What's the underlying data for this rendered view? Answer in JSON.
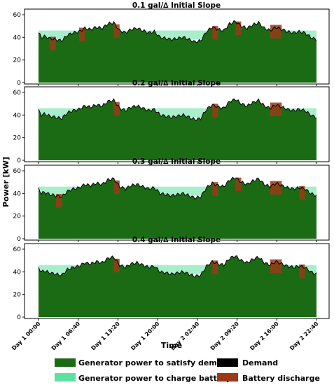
{
  "chart_data": {
    "type": "area",
    "ylabel": "Power [kW]",
    "xlabel": "Time",
    "ylim": [
      0,
      60
    ],
    "yticks": [
      0,
      20,
      40,
      60
    ],
    "xticks": [
      "Day 1 00:00",
      "Day 1 06:40",
      "Day 1 13:20",
      "Day 1 20:00",
      "Day 2 02:40",
      "Day 2 09:20",
      "Day 2 16:00",
      "Day 2 22:40"
    ],
    "xrange_hours": [
      0,
      48
    ],
    "legend": [
      {
        "label": "Generator power to satisfy demand",
        "color": "#1b6b14"
      },
      {
        "label": "Demand",
        "color": "#000000"
      },
      {
        "label": "Generator power to charge battery",
        "color": "#5ee0a0"
      },
      {
        "label": "Battery discharge",
        "color": "#9a3a16"
      }
    ],
    "demand_hours": [
      0,
      0.5,
      1,
      2,
      3,
      4,
      5,
      6,
      7,
      8,
      9,
      10,
      11,
      12,
      13,
      14,
      15,
      16,
      17,
      18,
      19,
      20,
      21,
      22,
      23,
      24,
      25,
      26,
      27,
      28,
      29,
      30,
      31,
      32,
      33,
      34,
      35,
      36,
      37,
      38,
      39,
      40,
      41,
      42,
      43,
      44,
      45,
      46,
      47,
      48
    ],
    "demand_values": [
      44,
      40,
      41,
      39,
      38,
      37,
      42,
      44,
      45,
      48,
      47,
      49,
      48,
      52,
      53,
      46,
      44,
      47,
      48,
      46,
      44,
      45,
      40,
      39,
      38,
      39,
      40,
      38,
      36,
      37,
      45,
      49,
      47,
      46,
      52,
      54,
      50,
      48,
      51,
      53,
      48,
      46,
      49,
      47,
      45,
      44,
      45,
      44,
      40,
      38
    ],
    "panels": [
      {
        "title": "0.1 gal/∆ Initial Slope",
        "charge_band": [
          38,
          46
        ],
        "discharge_hours": [
          [
            2,
            3
          ],
          [
            7,
            8
          ],
          [
            13,
            14
          ],
          [
            30,
            31
          ],
          [
            34,
            35
          ],
          [
            40,
            42
          ]
        ]
      },
      {
        "title": "0.2 gal/∆ Initial Slope",
        "charge_band": [
          38,
          46
        ],
        "discharge_hours": [
          [
            13,
            14
          ],
          [
            30,
            31
          ],
          [
            40,
            42
          ]
        ]
      },
      {
        "title": "0.3 gal/∆ Initial Slope",
        "charge_band": [
          38,
          46
        ],
        "discharge_hours": [
          [
            3,
            4
          ],
          [
            13,
            14
          ],
          [
            30,
            31
          ],
          [
            34,
            35
          ],
          [
            40,
            42
          ],
          [
            45,
            46
          ]
        ]
      },
      {
        "title": "0.4 gal/∆ Initial Slope",
        "charge_band": [
          38,
          46
        ],
        "discharge_hours": [
          [
            13,
            14
          ],
          [
            30,
            31
          ],
          [
            40,
            42
          ],
          [
            45,
            46
          ]
        ]
      }
    ]
  }
}
